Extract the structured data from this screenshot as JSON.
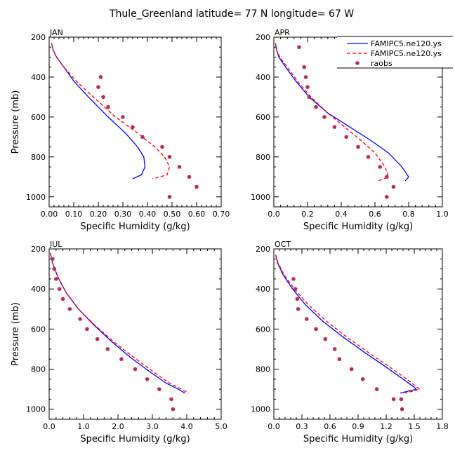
{
  "figure": {
    "title": "Thule_Greenland   latitude= 77 N longitude= 67 W"
  },
  "legend": {
    "entries": [
      {
        "label": "FAMIPC5.ne120.ys",
        "style": "solid-line",
        "color": "#0000ff"
      },
      {
        "label": "FAMIPC5.ne120.ys",
        "style": "dashed-line",
        "color": "#ff0000"
      },
      {
        "label": "raobs",
        "style": "dot",
        "color": "#b03060"
      }
    ]
  },
  "chart_data": [
    {
      "type": "line",
      "panel": "JAN",
      "xlabel": "Specific Humidity (g/kg)",
      "ylabel": "Pressure (mb)",
      "xlim": [
        0,
        0.7
      ],
      "ylim": [
        200,
        1050
      ],
      "y_inverted": true,
      "xticks": [
        "0.00",
        "0.10",
        "0.20",
        "0.30",
        "0.40",
        "0.50",
        "0.60",
        "0.70"
      ],
      "xtick_values": [
        0,
        0.1,
        0.2,
        0.3,
        0.4,
        0.5,
        0.6,
        0.7
      ],
      "yticks": [
        200,
        400,
        600,
        800,
        1000
      ],
      "series": [
        {
          "name": "FAMIPC5.ne120.ys",
          "style": "solid",
          "color": "#0000ff",
          "x": [
            0.01,
            0.015,
            0.03,
            0.06,
            0.1,
            0.16,
            0.24,
            0.31,
            0.36,
            0.385,
            0.39,
            0.375,
            0.34
          ],
          "y": [
            230,
            260,
            300,
            350,
            420,
            500,
            600,
            680,
            750,
            800,
            850,
            890,
            910
          ]
        },
        {
          "name": "FAMIPC5.ne120.ys",
          "style": "dashed",
          "color": "#ff0000",
          "x": [
            0.01,
            0.015,
            0.03,
            0.06,
            0.11,
            0.18,
            0.27,
            0.36,
            0.43,
            0.47,
            0.49,
            0.48,
            0.42
          ],
          "y": [
            230,
            260,
            300,
            350,
            420,
            500,
            600,
            680,
            750,
            800,
            850,
            890,
            910
          ]
        },
        {
          "name": "raobs",
          "style": "dots",
          "color": "#b03060",
          "x": [
            0.21,
            0.2,
            0.22,
            0.24,
            0.3,
            0.34,
            0.38,
            0.46,
            0.49,
            0.53,
            0.57,
            0.6,
            0.49
          ],
          "y": [
            400,
            450,
            500,
            550,
            600,
            650,
            700,
            750,
            800,
            850,
            900,
            950,
            1000
          ]
        }
      ]
    },
    {
      "type": "line",
      "panel": "APR",
      "xlabel": "Specific Humidity (g/kg)",
      "ylabel": "",
      "xlim": [
        0,
        1.0
      ],
      "ylim": [
        200,
        1050
      ],
      "y_inverted": true,
      "xticks": [
        "0.0",
        "0.2",
        "0.4",
        "0.6",
        "0.8",
        "1.0"
      ],
      "xtick_values": [
        0,
        0.2,
        0.4,
        0.6,
        0.8,
        1.0
      ],
      "yticks": [
        200,
        400,
        600,
        800,
        1000
      ],
      "series": [
        {
          "name": "FAMIPC5.ne120.ys",
          "style": "solid",
          "color": "#0000ff",
          "x": [
            0.01,
            0.015,
            0.03,
            0.07,
            0.13,
            0.21,
            0.32,
            0.45,
            0.58,
            0.68,
            0.76,
            0.8,
            0.78
          ],
          "y": [
            230,
            260,
            300,
            350,
            420,
            500,
            580,
            650,
            720,
            780,
            850,
            900,
            920
          ]
        },
        {
          "name": "FAMIPC5.ne120.ys",
          "style": "dashed",
          "color": "#ff0000",
          "x": [
            0.01,
            0.015,
            0.035,
            0.08,
            0.14,
            0.22,
            0.32,
            0.42,
            0.52,
            0.6,
            0.66,
            0.68,
            0.62
          ],
          "y": [
            230,
            260,
            300,
            350,
            420,
            500,
            580,
            650,
            720,
            780,
            850,
            900,
            920
          ]
        },
        {
          "name": "raobs",
          "style": "dots",
          "color": "#b03060",
          "x": [
            0.15,
            0.18,
            0.19,
            0.2,
            0.21,
            0.25,
            0.3,
            0.36,
            0.43,
            0.5,
            0.56,
            0.63,
            0.67,
            0.71,
            0.67
          ],
          "y": [
            250,
            350,
            400,
            450,
            500,
            550,
            600,
            650,
            700,
            750,
            800,
            850,
            900,
            950,
            1000
          ]
        }
      ]
    },
    {
      "type": "line",
      "panel": "JUL",
      "xlabel": "Specific Humidity (g/kg)",
      "ylabel": "Pressure (mb)",
      "xlim": [
        0,
        5.0
      ],
      "ylim": [
        200,
        1050
      ],
      "y_inverted": true,
      "xticks": [
        "0.0",
        "1.0",
        "2.0",
        "3.0",
        "4.0",
        "5.0"
      ],
      "xtick_values": [
        0,
        1,
        2,
        3,
        4,
        5
      ],
      "yticks": [
        200,
        400,
        600,
        800,
        1000
      ],
      "series": [
        {
          "name": "FAMIPC5.ne120.ys",
          "style": "solid",
          "color": "#0000ff",
          "x": [
            0.03,
            0.1,
            0.25,
            0.5,
            0.85,
            1.3,
            1.8,
            2.35,
            2.9,
            3.4,
            3.75,
            3.95
          ],
          "y": [
            220,
            270,
            340,
            420,
            500,
            580,
            660,
            740,
            810,
            870,
            900,
            920
          ]
        },
        {
          "name": "FAMIPC5.ne120.ys",
          "style": "dashed",
          "color": "#ff0000",
          "x": [
            0.03,
            0.1,
            0.25,
            0.5,
            0.85,
            1.32,
            1.85,
            2.45,
            3.0,
            3.5,
            3.85,
            4.05
          ],
          "y": [
            220,
            270,
            340,
            420,
            500,
            580,
            660,
            740,
            810,
            870,
            900,
            920
          ]
        },
        {
          "name": "raobs",
          "style": "dots",
          "color": "#b03060",
          "x": [
            0.1,
            0.15,
            0.2,
            0.3,
            0.4,
            0.6,
            0.9,
            1.1,
            1.4,
            1.7,
            2.1,
            2.5,
            2.85,
            3.2,
            3.55,
            3.6
          ],
          "y": [
            250,
            300,
            350,
            400,
            450,
            500,
            550,
            600,
            650,
            700,
            750,
            800,
            850,
            900,
            950,
            1000
          ]
        }
      ]
    },
    {
      "type": "line",
      "panel": "OCT",
      "xlabel": "Specific Humidity (g/kg)",
      "ylabel": "",
      "xlim": [
        0,
        1.8
      ],
      "ylim": [
        200,
        1050
      ],
      "y_inverted": true,
      "xticks": [
        "0.0",
        "0.3",
        "0.6",
        "0.9",
        "1.2",
        "1.5",
        "1.8"
      ],
      "xtick_values": [
        0,
        0.3,
        0.6,
        0.9,
        1.2,
        1.5,
        1.8
      ],
      "yticks": [
        200,
        400,
        600,
        800,
        1000
      ],
      "series": [
        {
          "name": "FAMIPC5.ne120.ys",
          "style": "solid",
          "color": "#0000ff",
          "x": [
            0.02,
            0.04,
            0.1,
            0.2,
            0.34,
            0.52,
            0.74,
            0.98,
            1.2,
            1.38,
            1.5,
            1.52,
            1.35
          ],
          "y": [
            230,
            270,
            330,
            400,
            480,
            560,
            640,
            720,
            790,
            850,
            890,
            900,
            920
          ]
        },
        {
          "name": "FAMIPC5.ne120.ys",
          "style": "dashed",
          "color": "#ff0000",
          "x": [
            0.02,
            0.045,
            0.11,
            0.22,
            0.37,
            0.56,
            0.78,
            1.02,
            1.24,
            1.42,
            1.53,
            1.56,
            1.4
          ],
          "y": [
            230,
            270,
            330,
            400,
            480,
            560,
            640,
            720,
            790,
            850,
            890,
            900,
            920
          ]
        },
        {
          "name": "raobs",
          "style": "dots",
          "color": "#b03060",
          "x": [
            0.21,
            0.23,
            0.25,
            0.26,
            0.35,
            0.45,
            0.55,
            0.65,
            0.7,
            0.83,
            0.95,
            1.1,
            1.28,
            1.37,
            1.36
          ],
          "y": [
            350,
            400,
            450,
            500,
            550,
            600,
            650,
            700,
            750,
            800,
            850,
            900,
            950,
            1000,
            950
          ]
        }
      ]
    }
  ]
}
